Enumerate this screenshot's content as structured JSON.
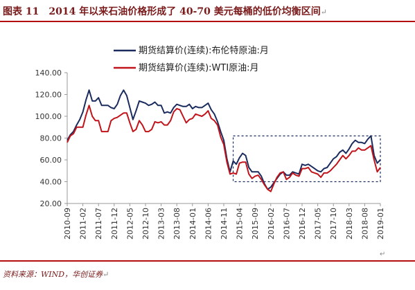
{
  "caption": {
    "label": "图表 11",
    "title": "2014 年以来石油价格形成了 40-70 美元每桶的低价均衡区间",
    "source": "资料来源：WIND，华创证券"
  },
  "chart_data": {
    "type": "line",
    "title": "",
    "xlabel": "",
    "ylabel": "",
    "ylim": [
      20,
      140
    ],
    "yticks": [
      "20.00",
      "40.00",
      "60.00",
      "80.00",
      "100.00",
      "120.00",
      "140.00"
    ],
    "grid": false,
    "legend_position": "top-center",
    "colors": {
      "brent": "#1a2b5e",
      "wti": "#c0141a",
      "box": "#1a2b5e"
    },
    "x": [
      "2010-09",
      "2010-10",
      "2010-11",
      "2010-12",
      "2011-01",
      "2011-02",
      "2011-03",
      "2011-04",
      "2011-05",
      "2011-06",
      "2011-07",
      "2011-08",
      "2011-09",
      "2011-10",
      "2011-11",
      "2011-12",
      "2012-01",
      "2012-02",
      "2012-03",
      "2012-04",
      "2012-05",
      "2012-06",
      "2012-07",
      "2012-08",
      "2012-09",
      "2012-10",
      "2012-11",
      "2012-12",
      "2013-01",
      "2013-02",
      "2013-03",
      "2013-04",
      "2013-05",
      "2013-06",
      "2013-07",
      "2013-08",
      "2013-09",
      "2013-10",
      "2013-11",
      "2013-12",
      "2014-01",
      "2014-02",
      "2014-03",
      "2014-04",
      "2014-05",
      "2014-06",
      "2014-07",
      "2014-08",
      "2014-09",
      "2014-10",
      "2014-11",
      "2014-12",
      "2015-01",
      "2015-02",
      "2015-03",
      "2015-04",
      "2015-05",
      "2015-06",
      "2015-07",
      "2015-08",
      "2015-09",
      "2015-10",
      "2015-11",
      "2015-12",
      "2016-01",
      "2016-02",
      "2016-03",
      "2016-04",
      "2016-05",
      "2016-06",
      "2016-07",
      "2016-08",
      "2016-09",
      "2016-10",
      "2016-11",
      "2016-12",
      "2017-01",
      "2017-02",
      "2017-03",
      "2017-04",
      "2017-05",
      "2017-06",
      "2017-07",
      "2017-08",
      "2017-09",
      "2017-10",
      "2017-11",
      "2017-12",
      "2018-01",
      "2018-02",
      "2018-03",
      "2018-04",
      "2018-05",
      "2018-06",
      "2018-07",
      "2018-08",
      "2018-09",
      "2018-10",
      "2018-11",
      "2018-12",
      "2019-01"
    ],
    "xtick_labels": [
      "2010-09",
      "2011-02",
      "2011-07",
      "2011-12",
      "2012-05",
      "2012-10",
      "2013-03",
      "2013-08",
      "2014-01",
      "2014-06",
      "2014-11",
      "2015-04",
      "2015-09",
      "2016-02",
      "2016-07",
      "2016-12",
      "2017-05",
      "2017-10",
      "2018-03",
      "2018-08",
      "2019-01"
    ],
    "series": [
      {
        "name": "期货结算价(连续):布伦特原油:月",
        "values": [
          78,
          83,
          86,
          92,
          97,
          104,
          115,
          124,
          114,
          114,
          117,
          110,
          110,
          110,
          108,
          107,
          111,
          119,
          124,
          119,
          108,
          97,
          105,
          114,
          113,
          112,
          110,
          111,
          113,
          110,
          110,
          103,
          104,
          103,
          108,
          111,
          110,
          109,
          109,
          111,
          107,
          109,
          108,
          108,
          110,
          112,
          106,
          102,
          95,
          86,
          78,
          61,
          49,
          59,
          56,
          62,
          66,
          64,
          53,
          49,
          49,
          49,
          45,
          38,
          33,
          35,
          39,
          43,
          47,
          49,
          46,
          46,
          49,
          48,
          47,
          56,
          55,
          56,
          54,
          52,
          50,
          49,
          52,
          53,
          57,
          61,
          63,
          67,
          69,
          66,
          70,
          75,
          78,
          76,
          76,
          75,
          79,
          82,
          64,
          57,
          60
        ]
      },
      {
        "name": "期货结算价(连续):WTI原油:月",
        "values": [
          76,
          82,
          84,
          90,
          90,
          90,
          101,
          110,
          100,
          96,
          96,
          86,
          86,
          86,
          96,
          98,
          99,
          101,
          103,
          103,
          94,
          86,
          88,
          96,
          92,
          86,
          86,
          88,
          95,
          94,
          95,
          92,
          92,
          96,
          104,
          107,
          106,
          100,
          94,
          97,
          98,
          102,
          101,
          100,
          102,
          105,
          98,
          96,
          92,
          81,
          74,
          58,
          47,
          48,
          47,
          57,
          58,
          58,
          47,
          43,
          45,
          46,
          42,
          37,
          33,
          31,
          38,
          44,
          48,
          49,
          42,
          44,
          48,
          46,
          45,
          52,
          52,
          53,
          49,
          48,
          47,
          44,
          48,
          48,
          50,
          53,
          56,
          60,
          64,
          61,
          64,
          68,
          68,
          71,
          69,
          69,
          71,
          73,
          60,
          49,
          53
        ]
      }
    ],
    "annotation_box": {
      "x_start": "2015-02",
      "x_end": "2019-01",
      "y_low": 40,
      "y_high": 82
    }
  }
}
